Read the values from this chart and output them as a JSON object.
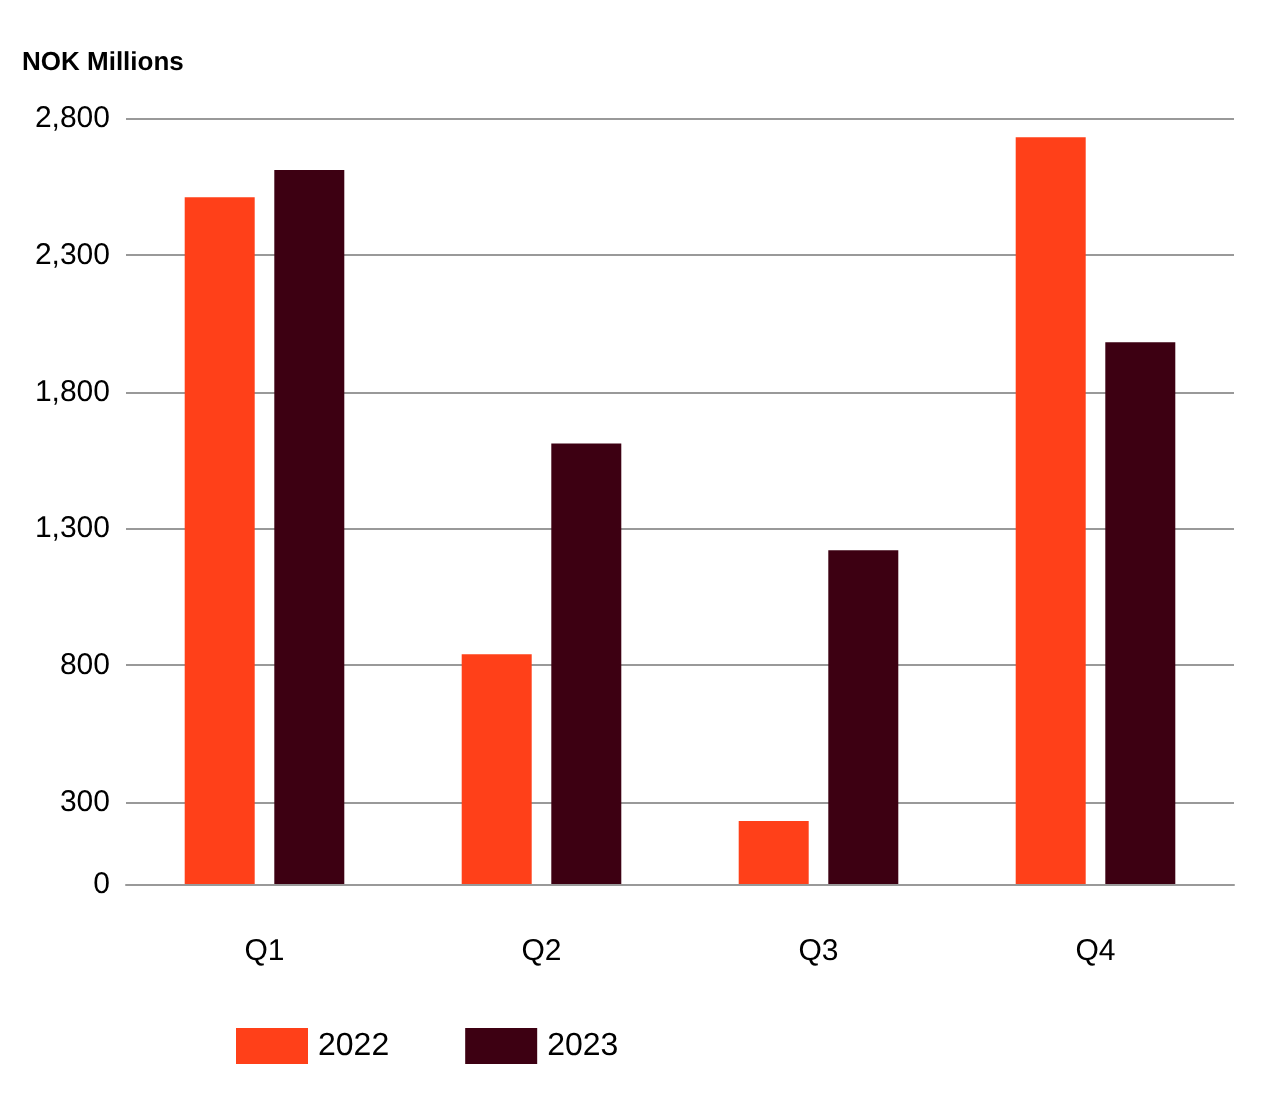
{
  "chart_data": {
    "type": "bar",
    "ylabel": "NOK Millions",
    "categories": [
      "Q1",
      "Q2",
      "Q3",
      "Q4"
    ],
    "series": [
      {
        "name": "2022",
        "color": "#ff4019",
        "values": [
          2510,
          840,
          230,
          2730
        ]
      },
      {
        "name": "2023",
        "color": "#3d0012",
        "values": [
          2610,
          1610,
          1220,
          1980
        ]
      }
    ],
    "ylim": [
      0,
      2800
    ],
    "yticks": [
      0,
      300,
      800,
      {
        "value": 1300,
        "label": "1,300"
      },
      {
        "value": 1800,
        "label": "1,800"
      },
      {
        "value": 2300,
        "label": "2,300"
      },
      {
        "value": 2800,
        "label": "2,800"
      }
    ],
    "grid": "y",
    "legend": "bottom"
  }
}
